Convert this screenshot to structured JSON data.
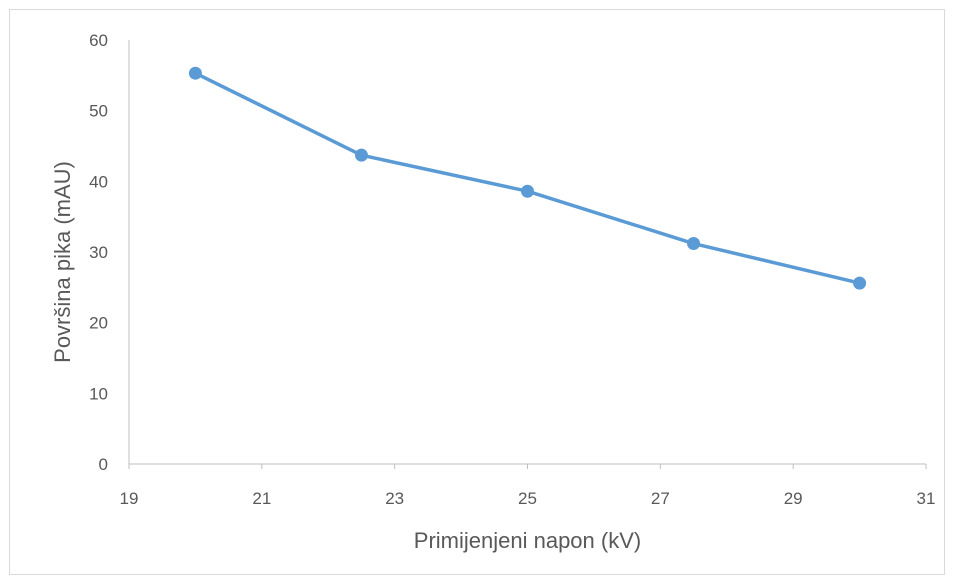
{
  "chart_data": {
    "type": "line",
    "title": "",
    "xlabel": "Primijenjeni napon (kV)",
    "ylabel": "Površina pika (mAU)",
    "xlim": [
      19,
      31
    ],
    "ylim": [
      0,
      60
    ],
    "xticks": [
      19,
      21,
      23,
      25,
      27,
      29,
      31
    ],
    "yticks": [
      0,
      10,
      20,
      30,
      40,
      50,
      60
    ],
    "grid": false,
    "legend": "none",
    "series": [
      {
        "color": "#5b9bd5",
        "x": [
          20,
          22.5,
          25,
          27.5,
          30
        ],
        "y": [
          55.3,
          43.7,
          38.6,
          31.2,
          25.6
        ]
      }
    ]
  }
}
